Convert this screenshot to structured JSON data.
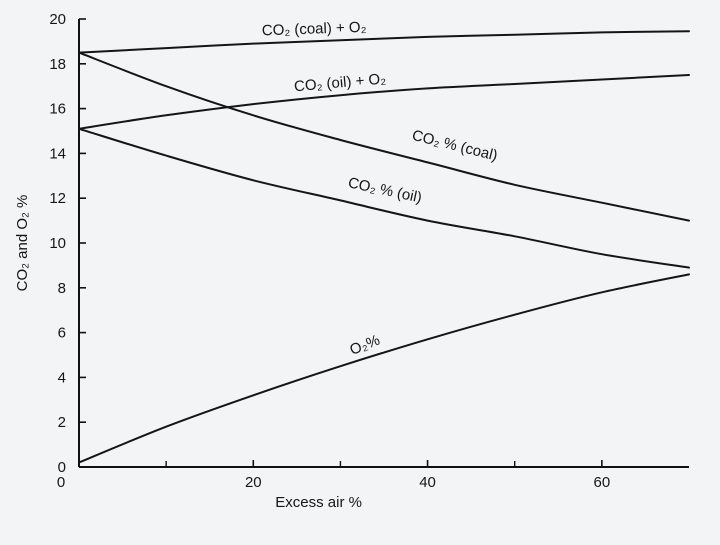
{
  "chart_data": {
    "type": "line",
    "title": "",
    "xlabel": "Excess air %",
    "ylabel": "CO₂ and O₂ %",
    "xlim": [
      0,
      70
    ],
    "ylim": [
      0,
      20
    ],
    "grid": false,
    "x_ticks": [
      0,
      20,
      40,
      60
    ],
    "x_minor_ticks": [
      10,
      30,
      50
    ],
    "y_ticks": [
      0,
      2,
      4,
      6,
      8,
      10,
      12,
      14,
      16,
      18,
      20
    ],
    "series": [
      {
        "name": "CO₂ (coal) + O₂",
        "x": [
          0,
          10,
          20,
          30,
          40,
          50,
          60,
          70
        ],
        "y": [
          18.5,
          18.7,
          18.9,
          19.05,
          19.2,
          19.3,
          19.4,
          19.45
        ]
      },
      {
        "name": "CO₂ (oil) + O₂",
        "x": [
          0,
          10,
          20,
          30,
          40,
          50,
          60,
          70
        ],
        "y": [
          15.1,
          15.7,
          16.2,
          16.6,
          16.9,
          17.1,
          17.3,
          17.5
        ]
      },
      {
        "name": "CO₂ % (coal)",
        "x": [
          0,
          10,
          20,
          30,
          40,
          50,
          60,
          70
        ],
        "y": [
          18.5,
          17.0,
          15.7,
          14.6,
          13.6,
          12.6,
          11.8,
          11.0
        ]
      },
      {
        "name": "CO₂ % (oil)",
        "x": [
          0,
          10,
          20,
          30,
          40,
          50,
          60,
          70
        ],
        "y": [
          15.1,
          13.9,
          12.8,
          11.9,
          11.0,
          10.3,
          9.5,
          8.9
        ]
      },
      {
        "name": "O₂%",
        "x": [
          0,
          10,
          20,
          30,
          40,
          50,
          60,
          70
        ],
        "y": [
          0.2,
          1.8,
          3.2,
          4.5,
          5.7,
          6.8,
          7.8,
          8.6
        ]
      }
    ]
  }
}
